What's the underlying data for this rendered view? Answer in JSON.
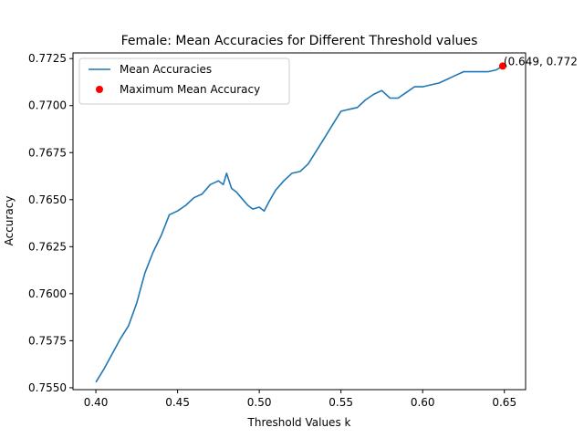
{
  "chart_data": {
    "type": "line",
    "title": "Female: Mean Accuracies for Different Threshold values",
    "xlabel": "Threshold Values k",
    "ylabel": "Accuracy",
    "xlim": [
      0.386,
      0.663
    ],
    "ylim": [
      0.7549,
      0.7728
    ],
    "grid": false,
    "legend_position": "upper left",
    "xticks": [
      0.4,
      0.45,
      0.5,
      0.55,
      0.6,
      0.65
    ],
    "xtick_labels": [
      "0.40",
      "0.45",
      "0.50",
      "0.55",
      "0.60",
      "0.65"
    ],
    "yticks": [
      0.755,
      0.7575,
      0.76,
      0.7625,
      0.765,
      0.7675,
      0.77,
      0.7725
    ],
    "ytick_labels": [
      "0.7550",
      "0.7575",
      "0.7600",
      "0.7625",
      "0.7650",
      "0.7675",
      "0.7700",
      "0.7725"
    ],
    "series": [
      {
        "name": "Mean Accuracies",
        "color": "#1f77b4",
        "x": [
          0.4,
          0.405,
          0.41,
          0.415,
          0.42,
          0.425,
          0.43,
          0.435,
          0.44,
          0.445,
          0.45,
          0.455,
          0.46,
          0.465,
          0.47,
          0.475,
          0.478,
          0.48,
          0.483,
          0.486,
          0.49,
          0.493,
          0.496,
          0.5,
          0.503,
          0.506,
          0.51,
          0.515,
          0.52,
          0.525,
          0.53,
          0.535,
          0.54,
          0.545,
          0.55,
          0.555,
          0.56,
          0.565,
          0.57,
          0.575,
          0.58,
          0.585,
          0.59,
          0.595,
          0.6,
          0.605,
          0.61,
          0.615,
          0.62,
          0.625,
          0.63,
          0.635,
          0.64,
          0.645,
          0.649
        ],
        "y": [
          0.7553,
          0.756,
          0.7568,
          0.7576,
          0.7583,
          0.7595,
          0.7611,
          0.7622,
          0.7631,
          0.7642,
          0.7644,
          0.7647,
          0.7651,
          0.7653,
          0.7658,
          0.766,
          0.7658,
          0.7664,
          0.7656,
          0.7654,
          0.765,
          0.7647,
          0.7645,
          0.7646,
          0.7644,
          0.7649,
          0.7655,
          0.766,
          0.7664,
          0.7665,
          0.7669,
          0.7676,
          0.7683,
          0.769,
          0.7697,
          0.7698,
          0.7699,
          0.7703,
          0.7706,
          0.7708,
          0.7704,
          0.7704,
          0.7707,
          0.771,
          0.771,
          0.7711,
          0.7712,
          0.7714,
          0.7716,
          0.7718,
          0.7718,
          0.7718,
          0.7718,
          0.7719,
          0.7721
        ]
      }
    ],
    "maximum": {
      "name": "Maximum Mean Accuracy",
      "color": "#ff0000",
      "x": 0.649,
      "y": 0.7721,
      "label": "(0.649, 0.772"
    }
  }
}
